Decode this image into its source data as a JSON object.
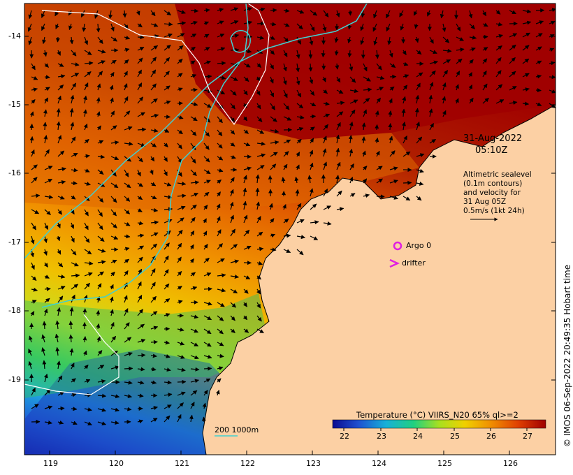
{
  "map": {
    "date": "31-Aug-2022",
    "time": "05:10Z",
    "legend_lines": [
      "Altimetric sealevel",
      "(0.1m contours)",
      "and velocity for",
      "31 Aug 05Z",
      "0.5m/s (1kt 24h)"
    ],
    "argo_label": "Argo 0",
    "drifter_label": "drifter",
    "contour_legend": "200  1000m",
    "colorbar_title": "Temperature (°C) VIIRS_N20 65% ql>=2",
    "colorbar_ticks": [
      "22",
      "23",
      "24",
      "25",
      "26",
      "27"
    ],
    "copyright": "© IMOS 06-Sep-2022 20:49:35 Hobart time",
    "lon_ticks": [
      "119",
      "120",
      "121",
      "122",
      "123",
      "124",
      "125",
      "126"
    ],
    "lat_ticks": [
      "-14",
      "-15",
      "-16",
      "-17",
      "-18",
      "-19"
    ],
    "colors": {
      "land": "#fcd0a4",
      "contour_200": "#40d0d0",
      "contour_1000": "#ffffff",
      "argo": "#e020e0",
      "drifter": "#e020e0"
    }
  }
}
